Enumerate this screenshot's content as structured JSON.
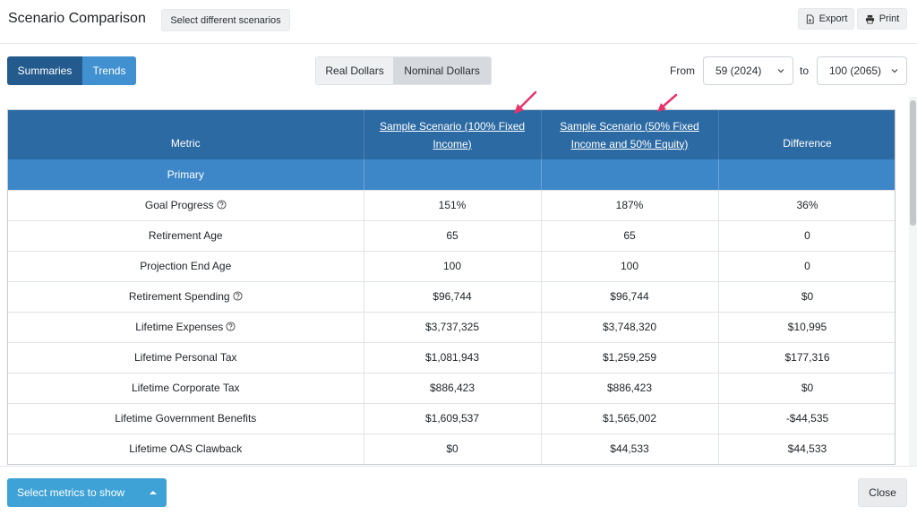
{
  "header": {
    "title": "Scenario Comparison",
    "select_scenarios_label": "Select different scenarios",
    "export_label": "Export",
    "print_label": "Print"
  },
  "toolbar": {
    "view_tabs": [
      "Summaries",
      "Trends"
    ],
    "active_view": "Summaries",
    "dollar_modes": [
      "Real Dollars",
      "Nominal Dollars"
    ],
    "active_dollar_mode": "Nominal Dollars",
    "from_label": "From",
    "from_value": "59 (2024)",
    "to_label": "to",
    "to_value": "100 (2065)"
  },
  "table": {
    "columns": [
      "Metric",
      "Sample Scenario (100% Fixed Income)",
      "Sample Scenario (50% Fixed Income and 50% Equity)",
      "Difference"
    ],
    "column_lines": [
      [
        "Sample Scenario (100% Fixed",
        "Income)"
      ],
      [
        "Sample Scenario (50% Fixed",
        "Income and 50% Equity)"
      ]
    ],
    "group": "Primary",
    "rows": [
      {
        "metric": "Goal Progress",
        "help": true,
        "a": "151%",
        "b": "187%",
        "diff": "36%"
      },
      {
        "metric": "Retirement Age",
        "help": false,
        "a": "65",
        "b": "65",
        "diff": "0"
      },
      {
        "metric": "Projection End Age",
        "help": false,
        "a": "100",
        "b": "100",
        "diff": "0"
      },
      {
        "metric": "Retirement Spending",
        "help": true,
        "a": "$96,744",
        "b": "$96,744",
        "diff": "$0"
      },
      {
        "metric": "Lifetime Expenses",
        "help": true,
        "a": "$3,737,325",
        "b": "$3,748,320",
        "diff": "$10,995"
      },
      {
        "metric": "Lifetime Personal Tax",
        "help": false,
        "a": "$1,081,943",
        "b": "$1,259,259",
        "diff": "$177,316"
      },
      {
        "metric": "Lifetime Corporate Tax",
        "help": false,
        "a": "$886,423",
        "b": "$886,423",
        "diff": "$0"
      },
      {
        "metric": "Lifetime Government Benefits",
        "help": false,
        "a": "$1,609,537",
        "b": "$1,565,002",
        "diff": "-$44,535"
      },
      {
        "metric": "Lifetime OAS Clawback",
        "help": false,
        "a": "$0",
        "b": "$44,533",
        "diff": "$44,533"
      }
    ]
  },
  "footer": {
    "select_metrics_label": "Select metrics to show",
    "close_label": "Close"
  },
  "colors": {
    "header_bg": "#2c6aa3",
    "group_bg": "#3d87c9",
    "summaries_active": "#245b8e",
    "trends_tab": "#4191d0",
    "metrics_button": "#3ea2d6",
    "annotation_arrow": "#e8336b"
  }
}
